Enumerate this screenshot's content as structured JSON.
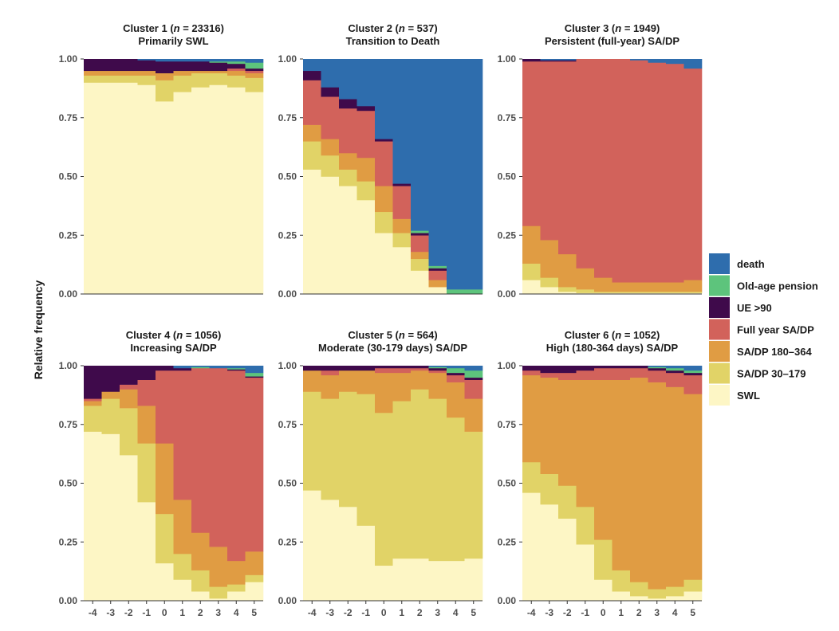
{
  "chart_data": {
    "type": "stacked-bar",
    "ylabel": "Relative frequency",
    "ylim": [
      0,
      1
    ],
    "y_ticks": [
      "0.00",
      "0.25",
      "0.50",
      "0.75",
      "1.00"
    ],
    "x": [
      "-4",
      "-3",
      "-2",
      "-1",
      "0",
      "1",
      "2",
      "3",
      "4",
      "5"
    ],
    "states": [
      "SWL",
      "SA/DP 30–179",
      "SA/DP 180–364",
      "Full year SA/DP",
      "UE >90",
      "Old-age pension",
      "death"
    ],
    "legend": {
      "order": [
        "death",
        "Old-age pension",
        "UE >90",
        "Full year SA/DP",
        "SA/DP 180–364",
        "SA/DP 30–179",
        "SWL"
      ],
      "colors": {
        "death": "#2E6DAD",
        "Old-age pension": "#5DC47C",
        "UE >90": "#3F0A4B",
        "Full year SA/DP": "#D2625B",
        "SA/DP 180–364": "#E09C43",
        "SA/DP 30–179": "#E1D367",
        "SWL": "#FDF6C5"
      },
      "placement": "right"
    },
    "panels": [
      {
        "title_prefix": "Cluster 1 (",
        "n_symbol": "n",
        "n_text": " = 23316)",
        "subtitle": "Primarily SWL",
        "cumulative": [
          [
            0.9,
            0.93,
            0.95,
            0.95,
            1.0,
            1.0,
            1.0
          ],
          [
            0.9,
            0.93,
            0.95,
            0.95,
            1.0,
            1.0,
            1.0
          ],
          [
            0.9,
            0.93,
            0.95,
            0.95,
            1.0,
            1.0,
            1.0
          ],
          [
            0.89,
            0.93,
            0.95,
            0.95,
            0.995,
            0.995,
            1.0
          ],
          [
            0.82,
            0.91,
            0.94,
            0.94,
            0.99,
            0.99,
            1.0
          ],
          [
            0.86,
            0.93,
            0.95,
            0.95,
            0.99,
            0.99,
            1.0
          ],
          [
            0.88,
            0.94,
            0.95,
            0.95,
            0.99,
            0.99,
            1.0
          ],
          [
            0.89,
            0.94,
            0.95,
            0.95,
            0.985,
            0.99,
            1.0
          ],
          [
            0.88,
            0.93,
            0.95,
            0.96,
            0.98,
            0.99,
            1.0
          ],
          [
            0.86,
            0.92,
            0.94,
            0.95,
            0.96,
            0.985,
            1.0
          ]
        ]
      },
      {
        "title_prefix": "Cluster 2 (",
        "n_symbol": "n",
        "n_text": " = 537)",
        "subtitle": "Transition to Death",
        "cumulative": [
          [
            0.53,
            0.65,
            0.72,
            0.91,
            0.95,
            0.95,
            1.0
          ],
          [
            0.5,
            0.59,
            0.66,
            0.84,
            0.88,
            0.88,
            1.0
          ],
          [
            0.46,
            0.53,
            0.6,
            0.79,
            0.83,
            0.83,
            1.0
          ],
          [
            0.4,
            0.48,
            0.58,
            0.78,
            0.8,
            0.8,
            1.0
          ],
          [
            0.26,
            0.35,
            0.46,
            0.65,
            0.66,
            0.66,
            1.0
          ],
          [
            0.2,
            0.26,
            0.32,
            0.46,
            0.47,
            0.47,
            1.0
          ],
          [
            0.1,
            0.15,
            0.18,
            0.25,
            0.26,
            0.27,
            1.0
          ],
          [
            0.03,
            0.03,
            0.06,
            0.1,
            0.11,
            0.12,
            1.0
          ],
          [
            0.0,
            0.0,
            0.0,
            0.0,
            0.0,
            0.02,
            1.0
          ],
          [
            0.0,
            0.0,
            0.0,
            0.0,
            0.0,
            0.02,
            1.0
          ]
        ]
      },
      {
        "title_prefix": "Cluster 3 (",
        "n_symbol": "n",
        "n_text": " = 1949)",
        "subtitle": "Persistent (full-year) SA/DP",
        "cumulative": [
          [
            0.06,
            0.13,
            0.29,
            0.99,
            1.0,
            1.0,
            1.0
          ],
          [
            0.03,
            0.07,
            0.23,
            0.99,
            0.995,
            0.995,
            1.0
          ],
          [
            0.01,
            0.03,
            0.17,
            0.99,
            0.995,
            0.995,
            1.0
          ],
          [
            0.005,
            0.02,
            0.11,
            1.0,
            1.0,
            1.0,
            1.0
          ],
          [
            0.005,
            0.01,
            0.07,
            1.0,
            1.0,
            1.0,
            1.0
          ],
          [
            0.005,
            0.01,
            0.05,
            1.0,
            1.0,
            1.0,
            1.0
          ],
          [
            0.005,
            0.01,
            0.05,
            0.995,
            0.995,
            0.995,
            1.0
          ],
          [
            0.005,
            0.01,
            0.05,
            0.985,
            0.985,
            0.985,
            1.0
          ],
          [
            0.005,
            0.01,
            0.05,
            0.98,
            0.98,
            0.98,
            1.0
          ],
          [
            0.005,
            0.01,
            0.06,
            0.96,
            0.96,
            0.96,
            1.0
          ]
        ]
      },
      {
        "title_prefix": "Cluster 4 (",
        "n_symbol": "n",
        "n_text": " = 1056)",
        "subtitle": "Increasing SA/DP",
        "cumulative": [
          [
            0.72,
            0.83,
            0.85,
            0.86,
            1.0,
            1.0,
            1.0
          ],
          [
            0.71,
            0.86,
            0.89,
            0.89,
            1.0,
            1.0,
            1.0
          ],
          [
            0.62,
            0.82,
            0.9,
            0.92,
            1.0,
            1.0,
            1.0
          ],
          [
            0.42,
            0.67,
            0.83,
            0.94,
            1.0,
            1.0,
            1.0
          ],
          [
            0.16,
            0.37,
            0.67,
            0.98,
            1.0,
            1.0,
            1.0
          ],
          [
            0.09,
            0.2,
            0.43,
            0.98,
            0.99,
            0.99,
            1.0
          ],
          [
            0.04,
            0.13,
            0.29,
            0.99,
            0.99,
            0.995,
            1.0
          ],
          [
            0.01,
            0.06,
            0.23,
            0.99,
            0.99,
            0.99,
            1.0
          ],
          [
            0.04,
            0.07,
            0.17,
            0.98,
            0.985,
            0.99,
            1.0
          ],
          [
            0.08,
            0.11,
            0.21,
            0.95,
            0.955,
            0.97,
            1.0
          ]
        ]
      },
      {
        "title_prefix": "Cluster 5 (",
        "n_symbol": "n",
        "n_text": " = 564)",
        "subtitle": "Moderate (30-179 days) SA/DP",
        "cumulative": [
          [
            0.47,
            0.89,
            0.98,
            0.98,
            1.0,
            1.0,
            1.0
          ],
          [
            0.43,
            0.86,
            0.96,
            0.98,
            1.0,
            1.0,
            1.0
          ],
          [
            0.4,
            0.89,
            0.98,
            0.98,
            1.0,
            1.0,
            1.0
          ],
          [
            0.32,
            0.88,
            0.98,
            0.98,
            1.0,
            1.0,
            1.0
          ],
          [
            0.15,
            0.8,
            0.97,
            0.99,
            1.0,
            1.0,
            1.0
          ],
          [
            0.18,
            0.85,
            0.97,
            0.99,
            1.0,
            1.0,
            1.0
          ],
          [
            0.18,
            0.9,
            0.98,
            0.99,
            1.0,
            1.0,
            1.0
          ],
          [
            0.17,
            0.86,
            0.97,
            0.98,
            0.99,
            0.995,
            1.0
          ],
          [
            0.17,
            0.78,
            0.93,
            0.96,
            0.97,
            0.99,
            1.0
          ],
          [
            0.18,
            0.72,
            0.86,
            0.94,
            0.95,
            0.98,
            1.0
          ]
        ]
      },
      {
        "title_prefix": "Cluster 6 (",
        "n_symbol": "n",
        "n_text": " = 1052)",
        "subtitle": "High (180-364 days) SA/DP",
        "cumulative": [
          [
            0.46,
            0.59,
            0.96,
            0.98,
            1.0,
            1.0,
            1.0
          ],
          [
            0.41,
            0.54,
            0.95,
            0.97,
            1.0,
            1.0,
            1.0
          ],
          [
            0.35,
            0.49,
            0.94,
            0.97,
            1.0,
            1.0,
            1.0
          ],
          [
            0.24,
            0.4,
            0.94,
            0.98,
            1.0,
            1.0,
            1.0
          ],
          [
            0.09,
            0.26,
            0.94,
            0.99,
            1.0,
            1.0,
            1.0
          ],
          [
            0.04,
            0.13,
            0.94,
            0.99,
            1.0,
            1.0,
            1.0
          ],
          [
            0.02,
            0.08,
            0.95,
            0.99,
            1.0,
            1.0,
            1.0
          ],
          [
            0.01,
            0.05,
            0.93,
            0.98,
            0.99,
            0.995,
            1.0
          ],
          [
            0.02,
            0.06,
            0.91,
            0.97,
            0.98,
            0.99,
            1.0
          ],
          [
            0.04,
            0.09,
            0.88,
            0.96,
            0.97,
            0.98,
            1.0
          ]
        ]
      }
    ]
  }
}
